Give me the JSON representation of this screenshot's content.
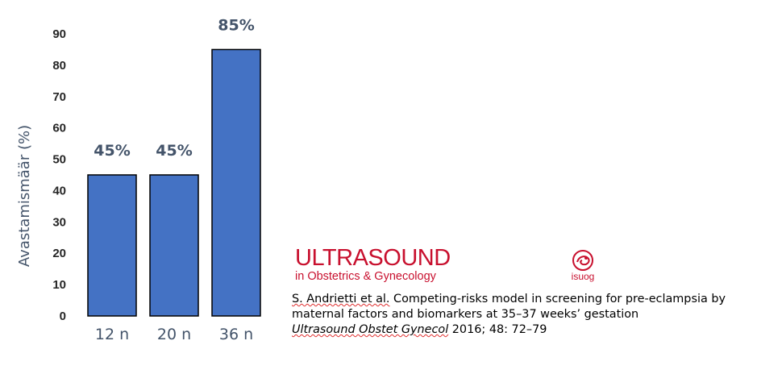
{
  "chart_data": {
    "type": "bar",
    "categories": [
      "12 n",
      "20 n",
      "36 n"
    ],
    "values": [
      45,
      45,
      85
    ],
    "data_labels": [
      "45%",
      "45%",
      "85%"
    ],
    "ylabel": "Avastamismäär (%)",
    "ylim": [
      0,
      90
    ],
    "yticks": [
      0,
      10,
      20,
      30,
      40,
      50,
      60,
      70,
      80,
      90
    ],
    "grid": false,
    "colors": {
      "bar": "#4472C4",
      "text": "#44546A"
    }
  },
  "logo": {
    "title": "ULTRASOUND",
    "subtitle": "in Obstetrics & Gynecology",
    "isuog": "isuog",
    "color": "#C8102E"
  },
  "citation": {
    "author": "S. Andrietti et al.",
    "text": " Competing-risks model in screening for pre-eclampsia by maternal factors and biomarkers at 35–37 weeks’ gestation",
    "journal": "Ultrasound Obstet Gynecol",
    "details": " 2016; 48: 72–79"
  }
}
